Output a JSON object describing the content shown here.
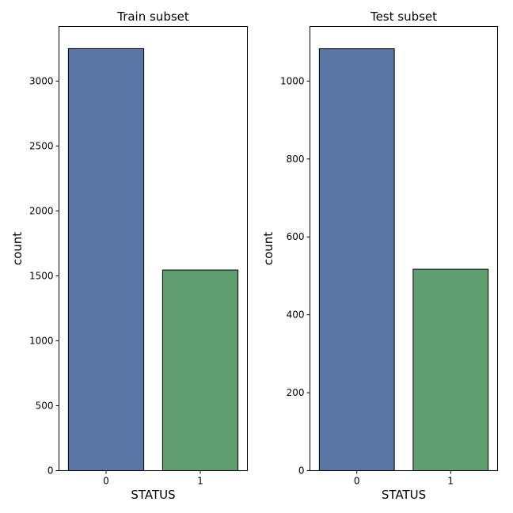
{
  "chart_data": [
    {
      "type": "bar",
      "title": "Train subset",
      "xlabel": "STATUS",
      "ylabel": "count",
      "categories": [
        "0",
        "1"
      ],
      "values": [
        3250,
        1545
      ],
      "colors": [
        "#5875a4",
        "#5f9e6e"
      ],
      "ylim": [
        0,
        3420
      ],
      "yticks": [
        0,
        500,
        1000,
        1500,
        2000,
        2500,
        3000
      ],
      "grid": false,
      "legend": "none"
    },
    {
      "type": "bar",
      "title": "Test subset",
      "xlabel": "STATUS",
      "ylabel": "count",
      "categories": [
        "0",
        "1"
      ],
      "values": [
        1083,
        517
      ],
      "colors": [
        "#5875a4",
        "#5f9e6e"
      ],
      "ylim": [
        0,
        1140
      ],
      "yticks": [
        0,
        200,
        400,
        600,
        800,
        1000
      ],
      "grid": false,
      "legend": "none"
    }
  ]
}
